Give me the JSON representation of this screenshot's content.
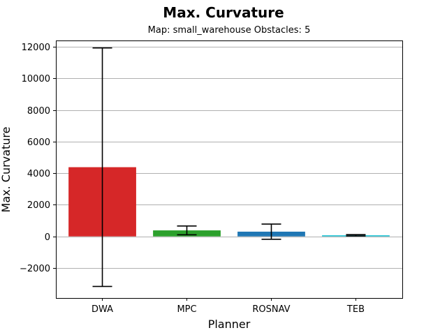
{
  "chart_data": {
    "type": "bar",
    "title": "Max. Curvature",
    "subtitle": "Map: small_warehouse Obstacles: 5",
    "xlabel": "Planner",
    "ylabel": "Max. Curvature",
    "categories": [
      "DWA",
      "MPC",
      "ROSNAV",
      "TEB"
    ],
    "values": [
      4380,
      380,
      300,
      70
    ],
    "error": [
      7550,
      280,
      480,
      40
    ],
    "colors": [
      "#d62728",
      "#2ca02c",
      "#1f77b4",
      "#17becf"
    ],
    "ylim": [
      -3900,
      12400
    ],
    "yticks": [
      -2000,
      0,
      2000,
      4000,
      6000,
      8000,
      10000,
      12000
    ],
    "ytick_labels": [
      "−2000",
      "0",
      "2000",
      "4000",
      "6000",
      "8000",
      "10000",
      "12000"
    ],
    "grid": "y"
  }
}
